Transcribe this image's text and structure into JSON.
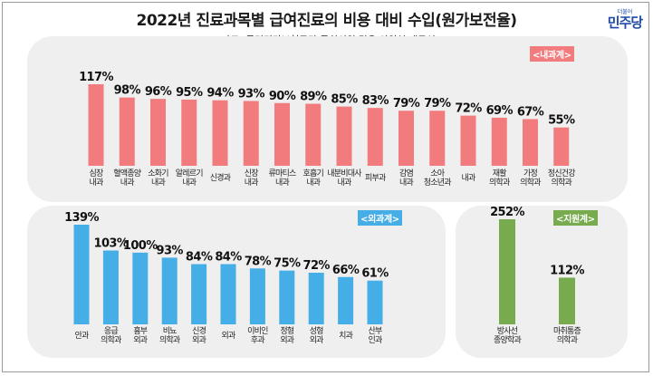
{
  "title": "2022년 진료과목별 급여진료의 비용 대비 수입(원가보전율)",
  "source": "[자료] 국민건강보험공단/국회의원 김윤 의원실 재구성",
  "logo": {
    "main": "민주당",
    "small": "더불어"
  },
  "colors": {
    "internal": "#f27b7e",
    "surgical": "#45aee6",
    "support": "#77ab4e",
    "panel": "#efefef"
  },
  "chart_data": [
    {
      "type": "bar",
      "title": "<내과계>",
      "categories": [
        [
          "심장",
          "내과"
        ],
        [
          "혈액종양",
          "내과"
        ],
        [
          "소화기",
          "내과"
        ],
        [
          "알레르기",
          "내과"
        ],
        [
          "신경과"
        ],
        [
          "신장",
          "내과"
        ],
        [
          "류마티스",
          "내과"
        ],
        [
          "호흡기",
          "내과"
        ],
        [
          "내분비대사",
          "내과"
        ],
        [
          "피부과"
        ],
        [
          "감염",
          "내과"
        ],
        [
          "소아",
          "청소년과"
        ],
        [
          "내과"
        ],
        [
          "재활",
          "의학과"
        ],
        [
          "가정",
          "의학과"
        ],
        [
          "정신건강",
          "의학과"
        ]
      ],
      "values": [
        117,
        98,
        96,
        95,
        94,
        93,
        90,
        89,
        85,
        83,
        79,
        79,
        72,
        69,
        67,
        55
      ],
      "labels": [
        "117%",
        "98%",
        "96%",
        "95%",
        "94%",
        "93%",
        "90%",
        "89%",
        "85%",
        "83%",
        "79%",
        "79%",
        "72%",
        "69%",
        "67%",
        "55%"
      ],
      "ylim": [
        0,
        117
      ]
    },
    {
      "type": "bar",
      "title": "<외과계>",
      "categories": [
        [
          "안과"
        ],
        [
          "응급",
          "의학과"
        ],
        [
          "흉부",
          "외과"
        ],
        [
          "비뇨",
          "의학과"
        ],
        [
          "신경",
          "외과"
        ],
        [
          "외과"
        ],
        [
          "이비인",
          "후과"
        ],
        [
          "정형",
          "외과"
        ],
        [
          "성형",
          "외과"
        ],
        [
          "치과"
        ],
        [
          "산부",
          "인과"
        ]
      ],
      "values": [
        139,
        103,
        100,
        93,
        84,
        84,
        78,
        75,
        72,
        66,
        61
      ],
      "labels": [
        "139%",
        "103%",
        "100%",
        "93%",
        "84%",
        "84%",
        "78%",
        "75%",
        "72%",
        "66%",
        "61%"
      ],
      "ylim": [
        0,
        139
      ]
    },
    {
      "type": "bar",
      "title": "<지원계>",
      "categories": [
        [
          "방사선",
          "종양학과"
        ],
        [
          "마취통증",
          "의학과"
        ]
      ],
      "values": [
        252,
        112
      ],
      "labels": [
        "252%",
        "112%"
      ],
      "ylim": [
        0,
        252
      ]
    }
  ]
}
